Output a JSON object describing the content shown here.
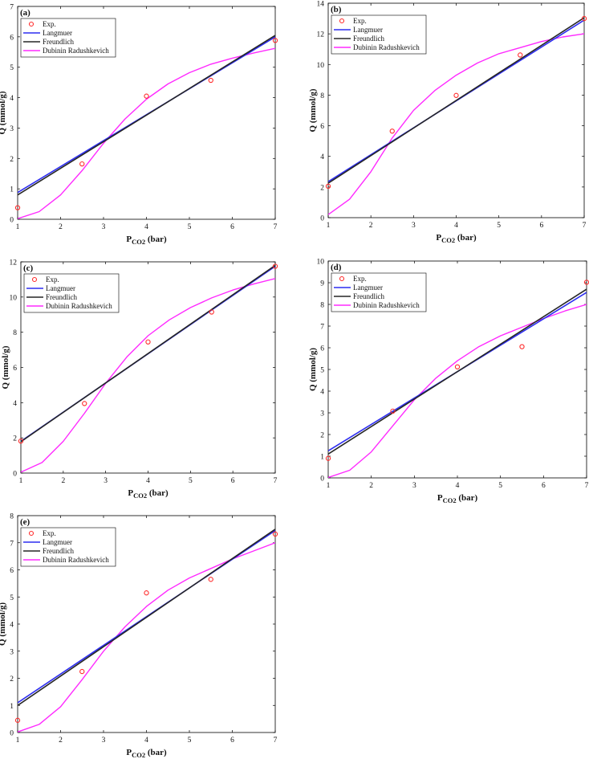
{
  "figure": {
    "colors": {
      "experimental": "#ff2a2a",
      "langmuir": "#2d2df0",
      "freundlich": "#262626",
      "dubinin": "#ff2aff",
      "axes": "#000000"
    }
  },
  "chart_data": [
    {
      "panel": "(a)",
      "type": "line",
      "xlabel_main": "P",
      "xlabel_sub": "CO2",
      "xlabel_unit": " (bar)",
      "ylabel": "Q (mmol/g)",
      "xlim": [
        1,
        7
      ],
      "ylim": [
        0,
        7
      ],
      "xticks": [
        1,
        2,
        3,
        4,
        5,
        6,
        7
      ],
      "yticks": [
        0,
        1,
        2,
        3,
        4,
        5,
        6,
        7
      ],
      "legend": [
        "Exp.",
        "Langmuer",
        "Freundlich",
        "Dubinin Radushkevich"
      ],
      "experimental": {
        "x": [
          1,
          2.5,
          4,
          5.5,
          7
        ],
        "y": [
          0.38,
          1.82,
          4.05,
          4.57,
          5.88
        ]
      },
      "langmuir_line": {
        "x": [
          1,
          7
        ],
        "y": [
          0.88,
          6.0
        ]
      },
      "freundlich_line": {
        "x": [
          1,
          7
        ],
        "y": [
          0.8,
          6.05
        ]
      },
      "dubinin_curve": {
        "x": [
          1,
          1.5,
          2,
          2.5,
          3,
          3.5,
          4,
          4.5,
          5,
          5.5,
          6,
          6.5,
          7
        ],
        "y": [
          0.02,
          0.25,
          0.8,
          1.6,
          2.5,
          3.3,
          3.95,
          4.45,
          4.82,
          5.1,
          5.3,
          5.47,
          5.62
        ]
      }
    },
    {
      "panel": "(b)",
      "type": "line",
      "xlabel_main": "P",
      "xlabel_sub": "CO2",
      "xlabel_unit": " (bar)",
      "ylabel": "Q (mmol/g)",
      "xlim": [
        1,
        7
      ],
      "ylim": [
        0,
        14
      ],
      "xticks": [
        1,
        2,
        3,
        4,
        5,
        6,
        7
      ],
      "yticks": [
        0,
        2,
        4,
        6,
        8,
        10,
        12,
        14
      ],
      "legend": [
        "Exp.",
        "Langmuer",
        "Freundlich",
        "Dubinin Radushkevich"
      ],
      "experimental": {
        "x": [
          1,
          2.5,
          4,
          5.5,
          7
        ],
        "y": [
          2.05,
          5.65,
          7.98,
          10.62,
          13.0
        ]
      },
      "langmuir_line": {
        "x": [
          1,
          7
        ],
        "y": [
          2.35,
          12.9
        ]
      },
      "freundlich_line": {
        "x": [
          1,
          7
        ],
        "y": [
          2.25,
          13.05
        ]
      },
      "dubinin_curve": {
        "x": [
          1,
          1.5,
          2,
          2.5,
          3,
          3.5,
          4,
          4.5,
          5,
          5.5,
          6,
          6.5,
          7
        ],
        "y": [
          0.2,
          1.2,
          3.0,
          5.2,
          7.0,
          8.3,
          9.3,
          10.1,
          10.7,
          11.1,
          11.5,
          11.8,
          12.0
        ]
      }
    },
    {
      "panel": "(c)",
      "type": "line",
      "xlabel_main": "P",
      "xlabel_sub": "CO2",
      "xlabel_unit": " (bar)",
      "ylabel": "Q (mmol/g)",
      "xlim": [
        1,
        7
      ],
      "ylim": [
        0,
        12
      ],
      "xticks": [
        1,
        2,
        3,
        4,
        5,
        6,
        7
      ],
      "yticks": [
        0,
        2,
        4,
        6,
        8,
        10,
        12
      ],
      "legend": [
        "Exp.",
        "Langmuer",
        "Freundlich",
        "Dubinin Radushkevich"
      ],
      "experimental": {
        "x": [
          1,
          2.5,
          4,
          5.5,
          7
        ],
        "y": [
          1.82,
          3.95,
          7.45,
          9.15,
          11.75
        ]
      },
      "langmuir_line": {
        "x": [
          1,
          7
        ],
        "y": [
          1.8,
          11.75
        ]
      },
      "freundlich_line": {
        "x": [
          1,
          7
        ],
        "y": [
          1.78,
          11.8
        ]
      },
      "dubinin_curve": {
        "x": [
          1,
          1.5,
          2,
          2.5,
          3,
          3.5,
          4,
          4.5,
          5,
          5.5,
          6,
          6.5,
          7
        ],
        "y": [
          0.05,
          0.6,
          1.8,
          3.4,
          5.1,
          6.6,
          7.8,
          8.7,
          9.4,
          9.95,
          10.4,
          10.75,
          11.05
        ]
      }
    },
    {
      "panel": "(d)",
      "type": "line",
      "xlabel_main": "P",
      "xlabel_sub": "CO2",
      "xlabel_unit": " (bar)",
      "ylabel": "Q (mmol/g)",
      "xlim": [
        1,
        7
      ],
      "ylim": [
        0,
        10
      ],
      "xticks": [
        1,
        2,
        3,
        4,
        5,
        6,
        7
      ],
      "yticks": [
        0,
        1,
        2,
        3,
        4,
        5,
        6,
        7,
        8,
        9,
        10
      ],
      "legend": [
        "Exp.",
        "Langmuer",
        "Freundlich",
        "Dubinin Radushkevich"
      ],
      "experimental": {
        "x": [
          1,
          2.5,
          4,
          5.5,
          7
        ],
        "y": [
          0.9,
          3.08,
          5.12,
          6.05,
          9.02
        ]
      },
      "langmuir_line": {
        "x": [
          1,
          7
        ],
        "y": [
          1.25,
          8.55
        ]
      },
      "freundlich_line": {
        "x": [
          1,
          7
        ],
        "y": [
          1.1,
          8.7
        ]
      },
      "dubinin_curve": {
        "x": [
          1,
          1.5,
          2,
          2.5,
          3,
          3.5,
          4,
          4.5,
          5,
          5.5,
          6,
          6.5,
          7
        ],
        "y": [
          0.02,
          0.35,
          1.2,
          2.4,
          3.6,
          4.6,
          5.4,
          6.05,
          6.55,
          6.95,
          7.35,
          7.7,
          8.0
        ]
      }
    },
    {
      "panel": "(e)",
      "type": "line",
      "xlabel_main": "P",
      "xlabel_sub": "CO2",
      "xlabel_unit": " (bar)",
      "ylabel": "Q (mmol/g)",
      "xlim": [
        1,
        7
      ],
      "ylim": [
        0,
        8
      ],
      "xticks": [
        1,
        2,
        3,
        4,
        5,
        6,
        7
      ],
      "yticks": [
        0,
        1,
        2,
        3,
        4,
        5,
        6,
        7,
        8
      ],
      "legend": [
        "Exp.",
        "Langmuer",
        "Freundlich",
        "Dubinin Radushkevich"
      ],
      "experimental": {
        "x": [
          1,
          2.5,
          4,
          5.5,
          7
        ],
        "y": [
          0.45,
          2.25,
          5.15,
          5.65,
          7.32
        ]
      },
      "langmuir_line": {
        "x": [
          1,
          7
        ],
        "y": [
          1.1,
          7.45
        ]
      },
      "freundlich_line": {
        "x": [
          1,
          7
        ],
        "y": [
          1.0,
          7.5
        ]
      },
      "dubinin_curve": {
        "x": [
          1,
          1.5,
          2,
          2.5,
          3,
          3.5,
          4,
          4.5,
          5,
          5.5,
          6,
          6.5,
          7
        ],
        "y": [
          0.02,
          0.3,
          0.95,
          1.95,
          3.0,
          3.9,
          4.65,
          5.25,
          5.7,
          6.05,
          6.4,
          6.7,
          7.0
        ]
      }
    }
  ]
}
